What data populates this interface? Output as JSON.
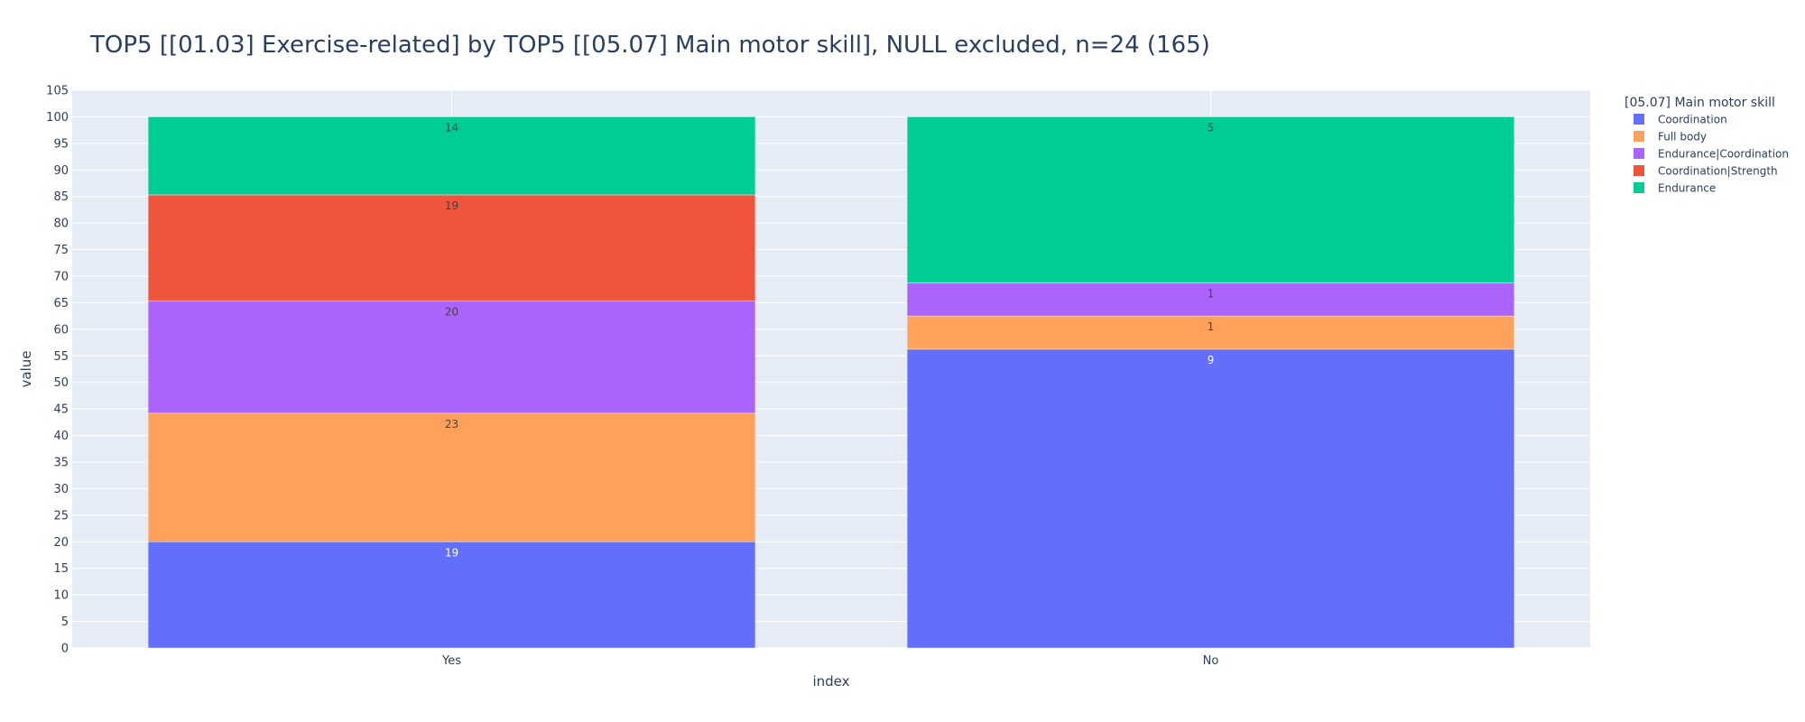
{
  "chart_data": {
    "type": "bar",
    "stacked": true,
    "title": "TOP5 [[01.03] Exercise-related] by TOP5 [[05.07] Main motor skill], NULL excluded, n=24 (165)",
    "xlabel": "index",
    "ylabel": "value",
    "ylim": [
      0,
      105
    ],
    "ytick_step": 5,
    "grid": true,
    "legend_position": "top-right",
    "legend_title": "[05.07] Main motor skill",
    "categories": [
      "Yes",
      "No"
    ],
    "series": [
      {
        "name": "Coordination",
        "color": "#636efa",
        "label_color": "#ffffff",
        "values": [
          20.0,
          56.25
        ],
        "labels": [
          "19",
          "9"
        ]
      },
      {
        "name": "Full body",
        "color": "#ffa15a",
        "label_color": "#444444",
        "values": [
          24.2,
          6.25
        ],
        "labels": [
          "23",
          "1"
        ]
      },
      {
        "name": "Endurance|Coordination",
        "color": "#ab63fa",
        "label_color": "#444444",
        "values": [
          21.1,
          6.25
        ],
        "labels": [
          "20",
          "1"
        ]
      },
      {
        "name": "Coordination|Strength",
        "color": "#ef553b",
        "label_color": "#444444",
        "values": [
          20.0,
          0
        ],
        "labels": [
          "19",
          ""
        ]
      },
      {
        "name": "Endurance",
        "color": "#00cc96",
        "label_color": "#444444",
        "values": [
          14.7,
          31.25
        ],
        "labels": [
          "14",
          "5"
        ]
      }
    ]
  }
}
